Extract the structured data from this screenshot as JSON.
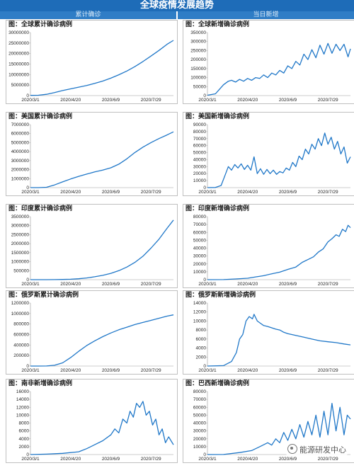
{
  "page": {
    "title": "全球疫情发展趋势",
    "left_header": "累计确诊",
    "right_header": "当日新增",
    "watermark": "能源研发中心"
  },
  "colors": {
    "banner": "#1e6cb8",
    "line": "#1f77c8",
    "header": "#2f7dc6"
  },
  "chart_data": [
    {
      "type": "line",
      "title": "图：全球累计确诊病例",
      "categories": [
        "2020/3/1",
        "2020/4/20",
        "2020/6/9",
        "2020/7/29"
      ],
      "ylim": [
        0,
        30000000
      ],
      "yticks": [
        0,
        5000000,
        10000000,
        15000000,
        20000000,
        25000000,
        30000000
      ],
      "ytick_labels": [
        "0",
        "5000000",
        "10000000",
        "15000000",
        "20000000",
        "25000000",
        "30000000"
      ],
      "x": [
        0,
        10,
        20,
        30,
        40,
        50,
        60,
        70,
        80,
        90,
        100,
        110,
        120,
        130,
        140,
        150,
        160,
        170,
        178
      ],
      "values": [
        87000,
        160000,
        600000,
        1400000,
        2400000,
        3200000,
        4000000,
        4800000,
        5800000,
        6900000,
        8300000,
        9900000,
        11700000,
        13800000,
        16200000,
        18800000,
        21500000,
        24400000,
        26300000
      ]
    },
    {
      "type": "line",
      "title": "图：全球新增确诊病例",
      "categories": [
        "2020/3/1",
        "2020/4/20",
        "2020/6/9",
        "2020/7/29"
      ],
      "ylim": [
        0,
        350000
      ],
      "yticks": [
        0,
        50000,
        100000,
        150000,
        200000,
        250000,
        300000,
        350000
      ],
      "ytick_labels": [
        "0",
        "50000",
        "100000",
        "150000",
        "200000",
        "250000",
        "300000",
        "350000"
      ],
      "x": [
        0,
        10,
        20,
        26,
        30,
        35,
        40,
        45,
        50,
        55,
        60,
        65,
        70,
        75,
        80,
        85,
        90,
        95,
        100,
        105,
        110,
        115,
        120,
        125,
        130,
        135,
        140,
        145,
        150,
        155,
        160,
        165,
        170,
        175,
        178
      ],
      "values": [
        2000,
        10000,
        60000,
        80000,
        85000,
        75000,
        90000,
        80000,
        95000,
        85000,
        100000,
        95000,
        115000,
        100000,
        125000,
        115000,
        140000,
        125000,
        165000,
        150000,
        190000,
        170000,
        230000,
        200000,
        255000,
        210000,
        280000,
        230000,
        290000,
        235000,
        285000,
        250000,
        285000,
        215000,
        260000
      ]
    },
    {
      "type": "line",
      "title": "图：美国累计确诊病例",
      "categories": [
        "2020/3/1",
        "2020/4/20",
        "2020/6/9",
        "2020/7/29"
      ],
      "ylim": [
        0,
        7000000
      ],
      "yticks": [
        0,
        1000000,
        2000000,
        3000000,
        4000000,
        5000000,
        6000000,
        7000000
      ],
      "ytick_labels": [
        "0",
        "1000000",
        "2000000",
        "3000000",
        "4000000",
        "5000000",
        "6000000",
        "7000000"
      ],
      "x": [
        0,
        10,
        20,
        30,
        40,
        50,
        60,
        70,
        80,
        90,
        100,
        110,
        120,
        130,
        140,
        150,
        160,
        170,
        178
      ],
      "values": [
        0,
        100,
        40000,
        300000,
        640000,
        960000,
        1250000,
        1500000,
        1750000,
        1950000,
        2200000,
        2600000,
        3200000,
        3900000,
        4500000,
        5000000,
        5450000,
        5850000,
        6200000
      ]
    },
    {
      "type": "line",
      "title": "图：美国新增确诊病例",
      "categories": [
        "2020/3/1",
        "2020/4/20",
        "2020/6/9",
        "2020/7/29"
      ],
      "ylim": [
        0,
        90000
      ],
      "yticks": [
        0,
        10000,
        20000,
        30000,
        40000,
        50000,
        60000,
        70000,
        80000,
        90000
      ],
      "ytick_labels": [
        "0",
        "10000",
        "20000",
        "30000",
        "40000",
        "50000",
        "60000",
        "70000",
        "80000",
        "90000"
      ],
      "x": [
        0,
        10,
        17,
        22,
        26,
        30,
        34,
        38,
        42,
        46,
        50,
        54,
        58,
        62,
        66,
        70,
        74,
        78,
        82,
        86,
        90,
        94,
        98,
        102,
        106,
        110,
        114,
        118,
        122,
        126,
        130,
        134,
        138,
        142,
        146,
        150,
        154,
        158,
        162,
        166,
        170,
        174,
        178
      ],
      "values": [
        0,
        200,
        3000,
        18000,
        30000,
        25000,
        33000,
        28000,
        34000,
        26000,
        32000,
        25000,
        44000,
        20000,
        27000,
        19000,
        26000,
        20000,
        25000,
        19000,
        23000,
        21000,
        28000,
        25000,
        36000,
        30000,
        45000,
        40000,
        55000,
        48000,
        62000,
        55000,
        70000,
        60000,
        78000,
        62000,
        72000,
        55000,
        66000,
        48000,
        58000,
        35000,
        44000
      ]
    },
    {
      "type": "line",
      "title": "图：印度累计确诊病例",
      "categories": [
        "2020/3/1",
        "2020/4/20",
        "2020/6/9",
        "2020/7/29"
      ],
      "ylim": [
        0,
        3500000
      ],
      "yticks": [
        0,
        500000,
        1000000,
        1500000,
        2000000,
        2500000,
        3000000,
        3500000
      ],
      "ytick_labels": [
        "0",
        "500000",
        "1000000",
        "1500000",
        "2000000",
        "2500000",
        "3000000",
        "3500000"
      ],
      "x": [
        0,
        10,
        20,
        30,
        40,
        50,
        60,
        70,
        80,
        90,
        100,
        110,
        120,
        130,
        140,
        150,
        160,
        170,
        178
      ],
      "values": [
        0,
        50,
        500,
        3000,
        10000,
        25000,
        50000,
        95000,
        160000,
        240000,
        350000,
        500000,
        700000,
        960000,
        1300000,
        1750000,
        2250000,
        2850000,
        3310000
      ]
    },
    {
      "type": "line",
      "title": "图：印度新增确诊病例",
      "categories": [
        "2020/3/1",
        "2020/4/20",
        "2020/6/9",
        "2020/7/29"
      ],
      "ylim": [
        0,
        80000
      ],
      "yticks": [
        0,
        10000,
        20000,
        30000,
        40000,
        50000,
        60000,
        70000,
        80000
      ],
      "ytick_labels": [
        "0",
        "10000",
        "20000",
        "30000",
        "40000",
        "50000",
        "60000",
        "70000",
        "80000"
      ],
      "x": [
        0,
        20,
        35,
        50,
        60,
        70,
        80,
        90,
        100,
        110,
        118,
        126,
        132,
        138,
        144,
        150,
        155,
        160,
        164,
        168,
        172,
        175,
        178
      ],
      "values": [
        0,
        100,
        900,
        1800,
        3500,
        5000,
        7500,
        9500,
        13000,
        16000,
        22000,
        26000,
        29000,
        35000,
        39000,
        48000,
        52000,
        57000,
        55000,
        64000,
        61000,
        69000,
        66000
      ]
    },
    {
      "type": "line",
      "title": "图：俄罗斯累计确诊病例",
      "categories": [
        "2020/3/1",
        "2020/4/20",
        "2020/6/9",
        "2020/7/29"
      ],
      "ylim": [
        0,
        1200000
      ],
      "yticks": [
        0,
        200000,
        400000,
        600000,
        800000,
        1000000,
        1200000
      ],
      "ytick_labels": [
        "0",
        "200000",
        "400000",
        "600000",
        "800000",
        "1000000",
        "1200000"
      ],
      "x": [
        0,
        10,
        20,
        30,
        40,
        50,
        60,
        70,
        80,
        90,
        100,
        110,
        120,
        130,
        140,
        150,
        160,
        170,
        178
      ],
      "values": [
        0,
        50,
        1500,
        15000,
        60000,
        160000,
        280000,
        390000,
        480000,
        560000,
        630000,
        690000,
        740000,
        790000,
        830000,
        870000,
        910000,
        950000,
        975000
      ]
    },
    {
      "type": "line",
      "title": "图：俄罗斯新增确诊病例",
      "categories": [
        "2020/3/1",
        "2020/4/20",
        "2020/6/9",
        "2020/7/29"
      ],
      "ylim": [
        0,
        14000
      ],
      "yticks": [
        0,
        2000,
        4000,
        6000,
        8000,
        10000,
        12000,
        14000
      ],
      "ytick_labels": [
        "0",
        "2000",
        "4000",
        "6000",
        "8000",
        "10000",
        "12000",
        "14000"
      ],
      "x": [
        0,
        20,
        30,
        36,
        40,
        44,
        48,
        52,
        56,
        58,
        62,
        66,
        70,
        75,
        80,
        85,
        90,
        95,
        100,
        110,
        120,
        130,
        140,
        150,
        160,
        170,
        178
      ],
      "values": [
        0,
        100,
        1000,
        3000,
        6000,
        7000,
        10000,
        11000,
        10500,
        11500,
        10000,
        9500,
        9000,
        8800,
        8500,
        8200,
        8000,
        7500,
        7200,
        6800,
        6400,
        6000,
        5600,
        5400,
        5200,
        4900,
        4700
      ]
    },
    {
      "type": "line",
      "title": "图：南非新增确诊病例",
      "categories": [
        "2020/3/1",
        "2020/4/20",
        "2020/6/9",
        "2020/7/29"
      ],
      "ylim": [
        0,
        16000
      ],
      "yticks": [
        0,
        2000,
        4000,
        6000,
        8000,
        10000,
        12000,
        14000,
        16000
      ],
      "ytick_labels": [
        "0",
        "2000",
        "4000",
        "6000",
        "8000",
        "10000",
        "12000",
        "14000",
        "16000"
      ],
      "x": [
        0,
        20,
        40,
        60,
        70,
        80,
        90,
        100,
        105,
        110,
        115,
        120,
        124,
        128,
        132,
        136,
        140,
        144,
        148,
        152,
        156,
        160,
        164,
        168,
        172,
        178
      ],
      "values": [
        0,
        100,
        300,
        700,
        1500,
        2500,
        3500,
        5000,
        6500,
        5500,
        9000,
        8000,
        11000,
        9500,
        13000,
        12000,
        13500,
        10000,
        11000,
        7500,
        9000,
        5000,
        6500,
        3000,
        4500,
        2500
      ]
    },
    {
      "type": "line",
      "title": "图：巴西新增确诊病例",
      "categories": [
        "2020/3/1",
        "2020/4/20",
        "2020/6/9",
        "2020/7/29"
      ],
      "ylim": [
        0,
        80000
      ],
      "yticks": [
        0,
        10000,
        20000,
        30000,
        40000,
        50000,
        60000,
        70000,
        80000
      ],
      "ytick_labels": [
        "0",
        "10000",
        "20000",
        "30000",
        "40000",
        "50000",
        "60000",
        "70000",
        "80000"
      ],
      "x": [
        0,
        20,
        40,
        55,
        65,
        75,
        80,
        85,
        90,
        95,
        100,
        105,
        110,
        115,
        120,
        125,
        130,
        135,
        140,
        145,
        150,
        155,
        160,
        165,
        170,
        174,
        178
      ],
      "values": [
        0,
        100,
        2500,
        5000,
        10000,
        15000,
        12000,
        20000,
        15000,
        28000,
        18000,
        32000,
        20000,
        38000,
        22000,
        42000,
        25000,
        50000,
        22000,
        55000,
        25000,
        65000,
        30000,
        60000,
        25000,
        50000,
        45000
      ]
    }
  ]
}
